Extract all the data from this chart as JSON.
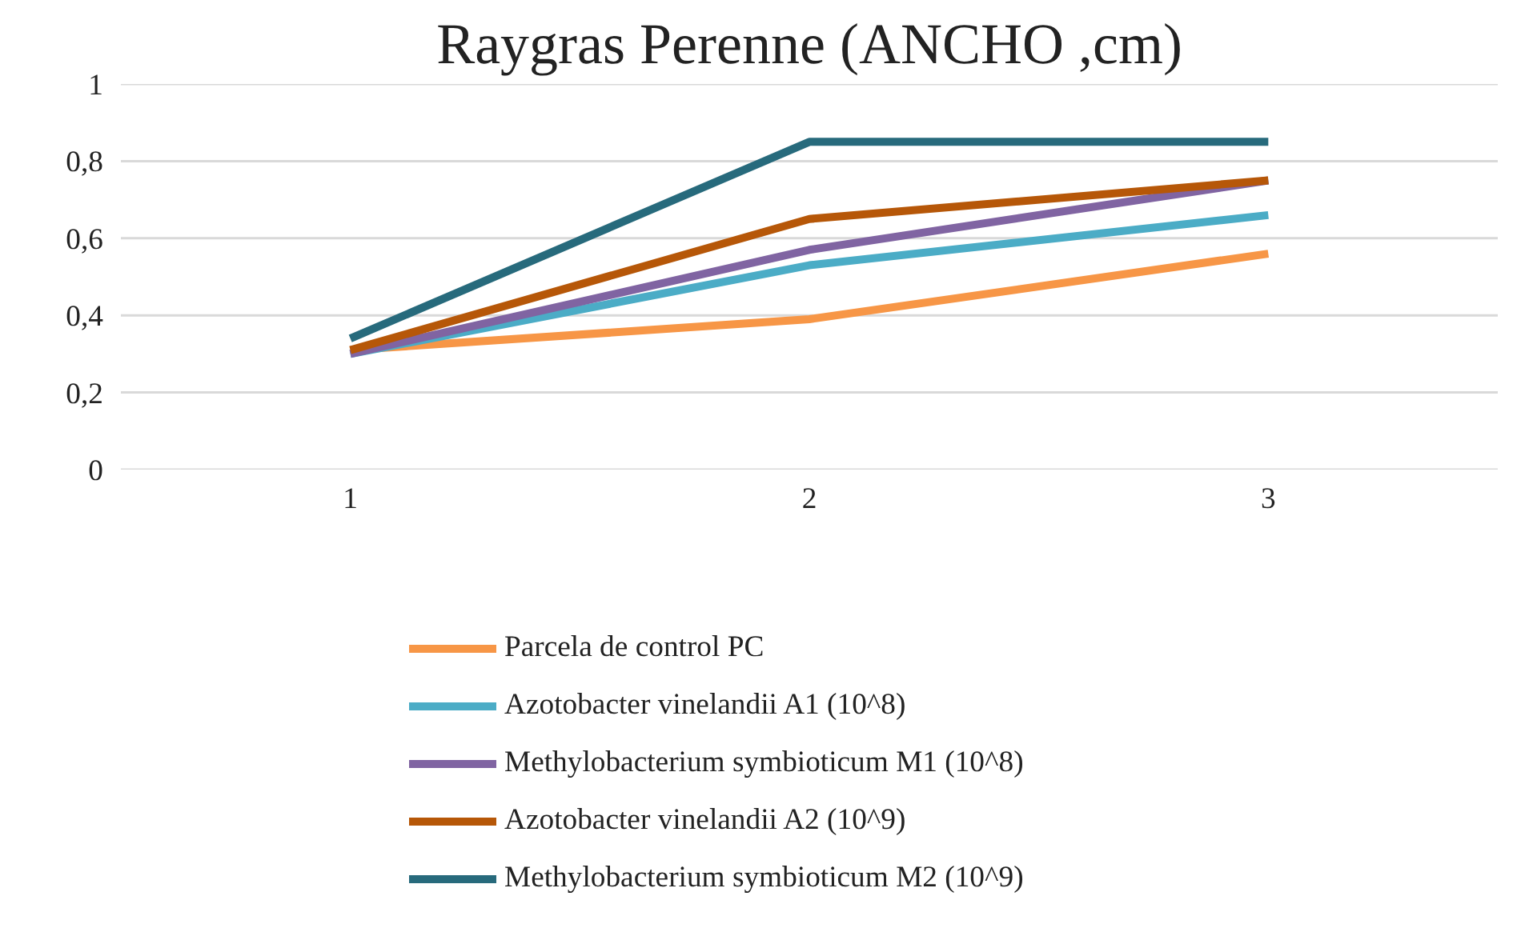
{
  "chart_data": {
    "type": "line",
    "title": "Raygras Perenne (ANCHO ,cm)",
    "categories": [
      "1",
      "2",
      "3"
    ],
    "series": [
      {
        "name": "Parcela de control PC",
        "color": "#f79646",
        "values": [
          0.31,
          0.39,
          0.56
        ]
      },
      {
        "name": "Azotobacter vinelandii A1 (10^8)",
        "color": "#4bacc6",
        "values": [
          0.3,
          0.53,
          0.66
        ]
      },
      {
        "name": "Methylobacterium symbioticum M1 (10^8)",
        "color": "#8064a2",
        "values": [
          0.3,
          0.57,
          0.75
        ]
      },
      {
        "name": "Azotobacter vinelandii A2 (10^9)",
        "color": "#b65708",
        "values": [
          0.31,
          0.65,
          0.75
        ]
      },
      {
        "name": "Methylobacterium symbioticum M2 (10^9)",
        "color": "#276a7c",
        "values": [
          0.34,
          0.85,
          0.85
        ]
      }
    ],
    "ylim": [
      0,
      1
    ],
    "yticks": [
      0,
      {
        "value": 0.2,
        "label": "0,2"
      },
      {
        "value": 0.4,
        "label": "0,4"
      },
      {
        "value": 0.6,
        "label": "0,6"
      },
      {
        "value": 0.8,
        "label": "0,8"
      },
      1
    ],
    "grid": "y",
    "legend": "bottom",
    "marker": "none",
    "line_style": "solid"
  }
}
